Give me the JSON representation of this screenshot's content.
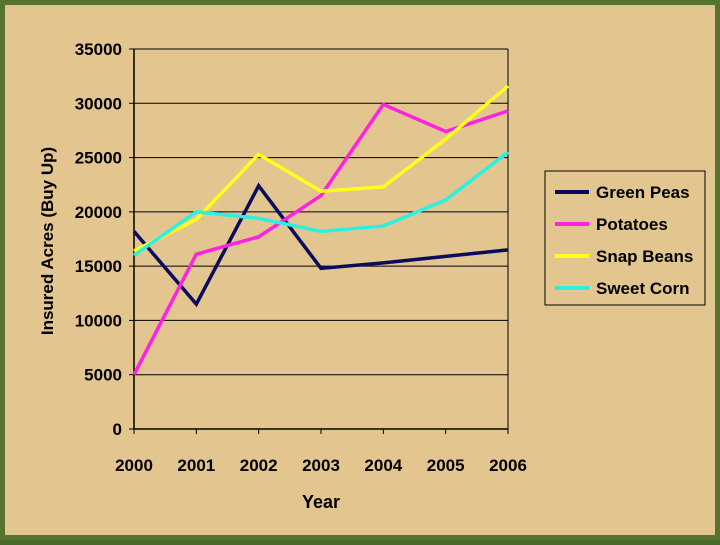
{
  "colors": {
    "background": "#e3c58f",
    "frame": "#56742f",
    "axis": "#000000",
    "gridline": "#000000"
  },
  "chart_data": {
    "type": "line",
    "title": "",
    "xlabel": "Year",
    "ylabel": "Insured Acres (Buy Up)",
    "x": [
      "2000",
      "2001",
      "2002",
      "2003",
      "2004",
      "2005",
      "2006"
    ],
    "ylim": [
      0,
      35000
    ],
    "yticks": [
      "0",
      "5000",
      "10000",
      "15000",
      "20000",
      "25000",
      "30000",
      "35000"
    ],
    "grid": true,
    "legend_position": "right",
    "series": [
      {
        "name": "Green Peas",
        "color": "#0b0b5e",
        "values": [
          18200,
          11500,
          22400,
          14800,
          15300,
          15900,
          16500
        ]
      },
      {
        "name": "Potatoes",
        "color": "#ff22e0",
        "values": [
          5000,
          16100,
          17700,
          21500,
          29900,
          27400,
          29300
        ]
      },
      {
        "name": "Snap Beans",
        "color": "#ffff1c",
        "values": [
          16400,
          19300,
          25300,
          21900,
          22300,
          26700,
          31600
        ]
      },
      {
        "name": "Sweet Corn",
        "color": "#2ef0e0",
        "values": [
          16000,
          20000,
          19400,
          18200,
          18700,
          21100,
          25500
        ]
      }
    ]
  }
}
